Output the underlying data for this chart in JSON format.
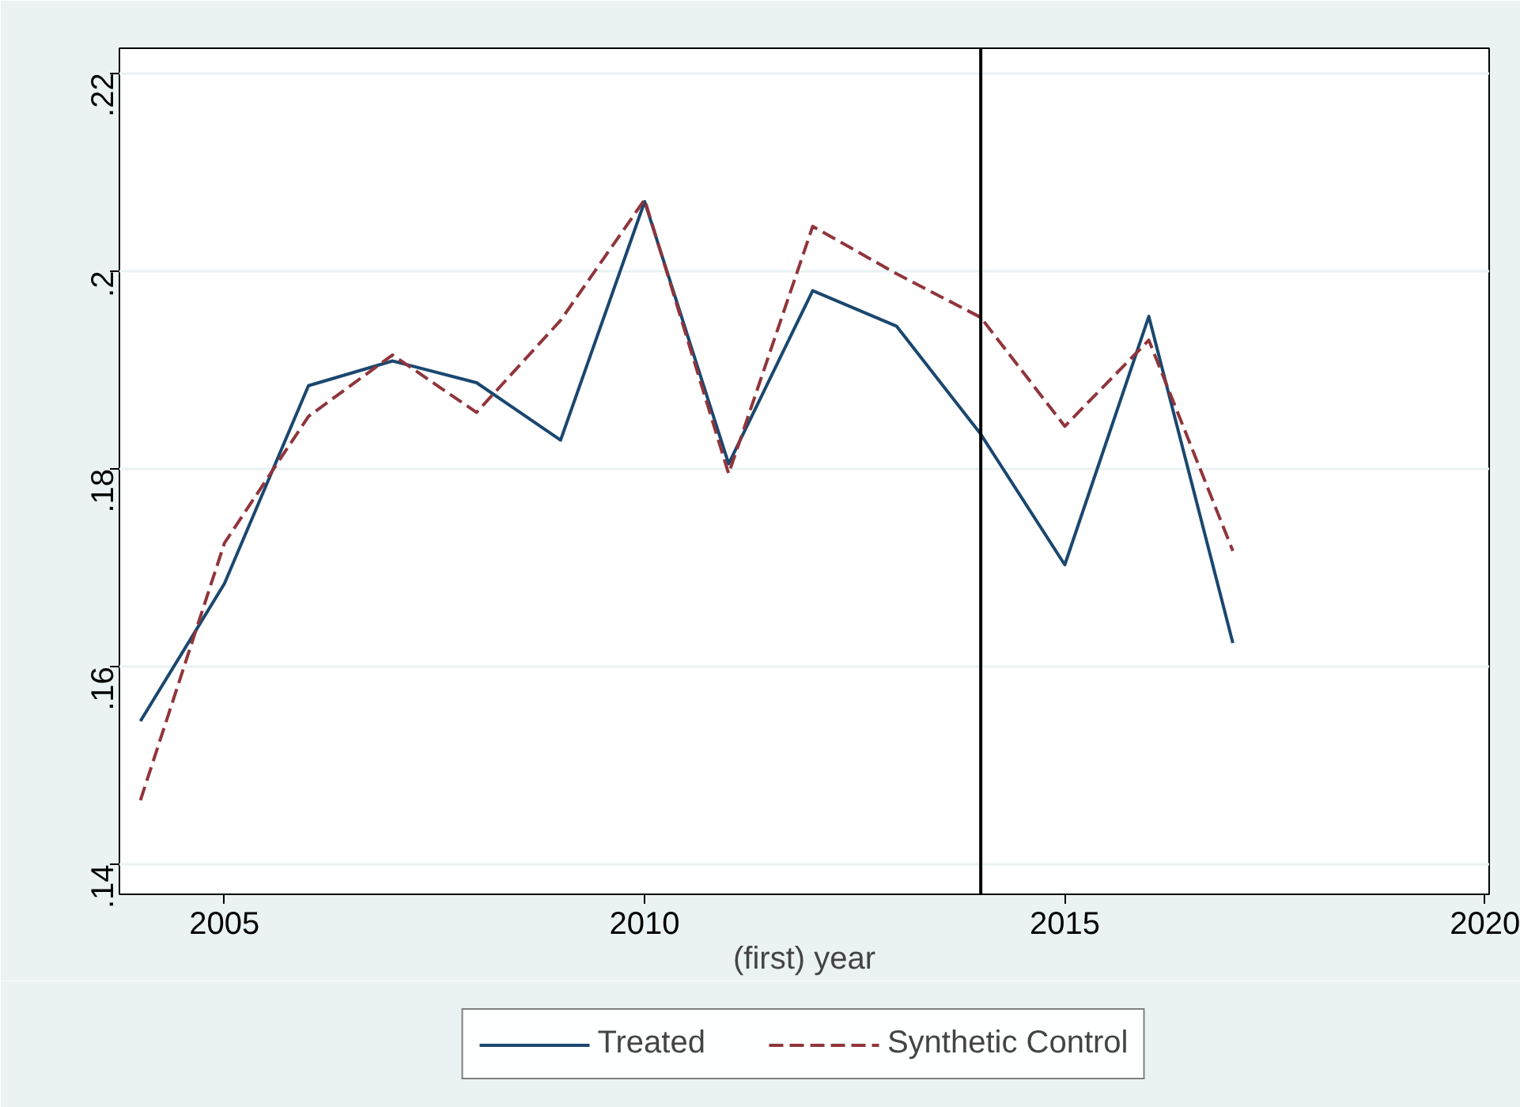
{
  "chart_data": {
    "type": "line",
    "xlabel": "(first) year",
    "x": [
      2004,
      2005,
      2006,
      2007,
      2008,
      2009,
      2010,
      2011,
      2012,
      2013,
      2014,
      2015,
      2016,
      2017
    ],
    "series": [
      {
        "name": "Treated",
        "color": "#1a476f",
        "line_style": "solid",
        "values": [
          0.1545,
          0.1684,
          0.1884,
          0.1909,
          0.1887,
          0.1829,
          0.207,
          0.1805,
          0.198,
          0.1944,
          0.1835,
          0.1703,
          0.1954,
          0.1624
        ]
      },
      {
        "name": "Synthetic Control",
        "color": "#90353b",
        "line_style": "dashed",
        "values": [
          0.1465,
          0.1725,
          0.1853,
          0.1915,
          0.1857,
          0.195,
          0.2072,
          0.1795,
          0.2045,
          0.1997,
          0.1953,
          0.1843,
          0.193,
          0.1717
        ]
      }
    ],
    "xlim": [
      2003.75,
      2020.05
    ],
    "ylim": [
      0.137,
      0.2225
    ],
    "xticks": [
      2005,
      2010,
      2015,
      2020
    ],
    "yticks": [
      {
        "value": 0.14,
        "label": ".14"
      },
      {
        "value": 0.16,
        "label": ".16"
      },
      {
        "value": 0.18,
        "label": ".18"
      },
      {
        "value": 0.2,
        "label": ".2"
      },
      {
        "value": 0.22,
        "label": ".22"
      }
    ],
    "ref_lines": [
      {
        "axis": "x",
        "value": 2014,
        "label": null,
        "color": "#000000"
      }
    ],
    "grid": "y",
    "legend": "bottom"
  }
}
